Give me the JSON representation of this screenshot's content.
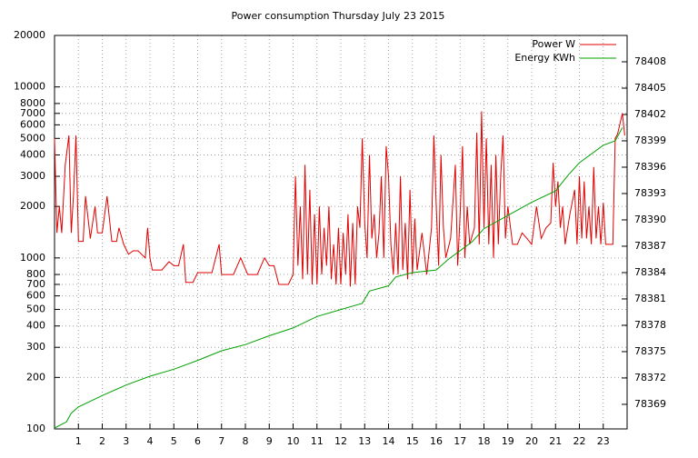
{
  "chart_data": {
    "type": "line",
    "title": "Power consumption Thursday July 23 2015",
    "xlim": [
      0,
      24
    ],
    "xticks": [
      1,
      2,
      3,
      4,
      5,
      6,
      7,
      8,
      9,
      10,
      11,
      12,
      13,
      14,
      15,
      16,
      17,
      18,
      19,
      20,
      21,
      22,
      23
    ],
    "ylim": [
      100,
      20000
    ],
    "log_scale": true,
    "yticks": [
      100,
      200,
      300,
      400,
      500,
      600,
      700,
      800,
      1000,
      2000,
      3000,
      4000,
      5000,
      6000,
      7000,
      8000,
      10000,
      20000
    ],
    "y2lim": [
      78366.2,
      78411
    ],
    "y2ticks": [
      78369,
      78372,
      78375,
      78378,
      78381,
      78384,
      78387,
      78390,
      78393,
      78396,
      78399,
      78402,
      78405,
      78408
    ],
    "grid": true,
    "legend": "top-right",
    "series": [
      {
        "name": "Power W",
        "color": "#e00000",
        "x": [
          0,
          0.1,
          0.2,
          0.3,
          0.45,
          0.6,
          0.7,
          0.8,
          0.9,
          1.0,
          1.2,
          1.3,
          1.5,
          1.7,
          1.8,
          2.0,
          2.2,
          2.4,
          2.6,
          2.7,
          2.9,
          3.1,
          3.3,
          3.5,
          3.8,
          3.9,
          4.0,
          4.1,
          4.5,
          4.8,
          5.0,
          5.2,
          5.4,
          5.5,
          5.8,
          6.0,
          6.4,
          6.6,
          6.9,
          7.0,
          7.5,
          7.8,
          8.1,
          8.5,
          8.8,
          9.0,
          9.2,
          9.4,
          9.8,
          10.0,
          10.1,
          10.2,
          10.3,
          10.4,
          10.5,
          10.6,
          10.7,
          10.8,
          10.9,
          11.0,
          11.1,
          11.2,
          11.3,
          11.4,
          11.5,
          11.6,
          11.7,
          11.8,
          11.9,
          12.0,
          12.1,
          12.2,
          12.3,
          12.4,
          12.5,
          12.6,
          12.7,
          12.8,
          12.9,
          13.0,
          13.1,
          13.2,
          13.3,
          13.4,
          13.5,
          13.6,
          13.7,
          13.8,
          13.9,
          14.0,
          14.1,
          14.2,
          14.3,
          14.4,
          14.5,
          14.6,
          14.7,
          14.8,
          14.9,
          15.0,
          15.1,
          15.2,
          15.4,
          15.6,
          15.8,
          15.9,
          16.0,
          16.1,
          16.2,
          16.3,
          16.4,
          16.6,
          16.8,
          16.9,
          17.0,
          17.1,
          17.2,
          17.3,
          17.4,
          17.6,
          17.7,
          17.8,
          17.9,
          18.0,
          18.1,
          18.2,
          18.3,
          18.4,
          18.5,
          18.6,
          18.7,
          18.8,
          18.9,
          19.0,
          19.2,
          19.4,
          19.6,
          19.8,
          20.0,
          20.2,
          20.4,
          20.6,
          20.8,
          20.9,
          21.0,
          21.1,
          21.2,
          21.3,
          21.4,
          21.6,
          21.8,
          21.9,
          22.0,
          22.1,
          22.2,
          22.3,
          22.4,
          22.5,
          22.6,
          22.7,
          22.8,
          22.9,
          23.0,
          23.1,
          23.4,
          23.5,
          23.6,
          23.8,
          23.9
        ],
        "values": [
          5000,
          1400,
          2000,
          1400,
          3500,
          5200,
          1400,
          2400,
          5200,
          1250,
          1250,
          2300,
          1300,
          2000,
          1400,
          1400,
          2300,
          1250,
          1250,
          1500,
          1200,
          1050,
          1100,
          1100,
          1000,
          1500,
          1000,
          850,
          850,
          950,
          900,
          900,
          1200,
          720,
          720,
          820,
          820,
          820,
          1200,
          800,
          800,
          1000,
          800,
          800,
          1000,
          900,
          900,
          700,
          700,
          800,
          3000,
          900,
          2000,
          750,
          3500,
          800,
          2500,
          700,
          1800,
          700,
          2000,
          800,
          1500,
          900,
          2000,
          750,
          1200,
          700,
          1500,
          700,
          1400,
          800,
          1800,
          680,
          1600,
          700,
          2000,
          1500,
          5000,
          1600,
          1000,
          4000,
          1300,
          1800,
          1000,
          1400,
          3000,
          1000,
          4500,
          3000,
          1200,
          800,
          1600,
          800,
          3000,
          850,
          1600,
          750,
          2500,
          800,
          1700,
          850,
          1400,
          800,
          1500,
          5200,
          2000,
          900,
          4000,
          1500,
          1000,
          1300,
          3500,
          900,
          1800,
          4500,
          1000,
          2000,
          1200,
          1500,
          5400,
          1200,
          7200,
          1500,
          5000,
          1200,
          3500,
          1000,
          4000,
          1200,
          3000,
          5200,
          1300,
          2000,
          1200,
          1200,
          1400,
          1300,
          1200,
          2000,
          1300,
          1500,
          1600,
          3600,
          2000,
          2800,
          1500,
          2000,
          1200,
          1800,
          2500,
          1200,
          3000,
          1300,
          2800,
          1300,
          2000,
          1200,
          3400,
          1300,
          2000,
          1200,
          2100,
          1200,
          1200,
          5000,
          5300,
          7000,
          5200
        ]
      },
      {
        "name": "Energy KWh",
        "color": "#00a000",
        "axis": "y2",
        "x": [
          0,
          0.5,
          0.7,
          1,
          2,
          3,
          4,
          5,
          6,
          7,
          8,
          9,
          10,
          11,
          12,
          12.9,
          13.2,
          14,
          14.3,
          15,
          16,
          16.5,
          17,
          17.5,
          18,
          19,
          20,
          21,
          21.5,
          22,
          23,
          23.5,
          23.8
        ],
        "values": [
          78366.3,
          78367,
          78368,
          78368.7,
          78370,
          78371.2,
          78372.2,
          78373,
          78374,
          78375.1,
          78375.8,
          78376.8,
          78377.7,
          78379,
          78379.8,
          78380.5,
          78381.9,
          78382.5,
          78383.5,
          78384,
          78384.3,
          78385.5,
          78386.5,
          78387.5,
          78389,
          78390.5,
          78392,
          78393.3,
          78395,
          78396.5,
          78398.5,
          78399,
          78400.5
        ]
      }
    ]
  }
}
